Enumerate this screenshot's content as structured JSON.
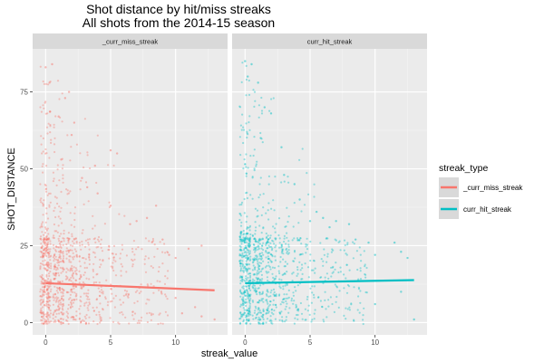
{
  "chart_data": {
    "type": "scatter",
    "title": "Shot distance by hit/miss streaks",
    "subtitle": "All shots from the 2014-15 season",
    "xlabel": "streak_value",
    "ylabel": "SHOT_DISTANCE",
    "xlim": [
      -1,
      14
    ],
    "ylim": [
      -4,
      89
    ],
    "x_ticks": [
      0,
      5,
      10
    ],
    "y_ticks": [
      0,
      25,
      50,
      75
    ],
    "grid": true,
    "legend_title": "streak_type",
    "legend_placement": "right",
    "panels": [
      {
        "strip": "_curr_miss_streak",
        "color": "#F8766D",
        "trend": {
          "x": [
            0,
            13
          ],
          "y": [
            12.8,
            10.5
          ]
        },
        "sparse_points": [
          {
            "x": 11,
            "y": 24
          },
          {
            "x": 11.5,
            "y": 5
          },
          {
            "x": 12,
            "y": 25
          },
          {
            "x": 12,
            "y": 2
          },
          {
            "x": 13,
            "y": 1
          },
          {
            "x": 10,
            "y": 21
          },
          {
            "x": 10.5,
            "y": 3
          },
          {
            "x": 9,
            "y": 27
          },
          {
            "x": 9.5,
            "y": 22
          },
          {
            "x": 10,
            "y": 8
          },
          {
            "x": 8.5,
            "y": 38
          },
          {
            "x": 7.8,
            "y": 34
          },
          {
            "x": 7,
            "y": 33
          },
          {
            "x": 6.5,
            "y": 32
          },
          {
            "x": 5.5,
            "y": 55
          },
          {
            "x": 5,
            "y": 56
          },
          {
            "x": 5,
            "y": 38
          },
          {
            "x": 3.8,
            "y": 51
          },
          {
            "x": 2.2,
            "y": 65
          },
          {
            "x": 1.8,
            "y": 75
          },
          {
            "x": 1.5,
            "y": 73
          },
          {
            "x": 1,
            "y": 67
          },
          {
            "x": 0.5,
            "y": 84
          },
          {
            "x": 0,
            "y": 83
          },
          {
            "x": 2,
            "y": 61
          },
          {
            "x": 0.3,
            "y": 78
          },
          {
            "x": 1.2,
            "y": 53
          },
          {
            "x": 2.8,
            "y": 47
          },
          {
            "x": 3.2,
            "y": 44
          },
          {
            "x": 4,
            "y": 42
          }
        ]
      },
      {
        "strip": "curr_hit_streak",
        "color": "#00BFC4",
        "trend": {
          "x": [
            0,
            13
          ],
          "y": [
            12.8,
            13.8
          ]
        },
        "sparse_points": [
          {
            "x": 11.5,
            "y": 26
          },
          {
            "x": 12,
            "y": 23
          },
          {
            "x": 12.5,
            "y": 21
          },
          {
            "x": 13,
            "y": 1
          },
          {
            "x": 12,
            "y": 10
          },
          {
            "x": 10,
            "y": 22
          },
          {
            "x": 9.5,
            "y": 26
          },
          {
            "x": 10,
            "y": 6
          },
          {
            "x": 8.5,
            "y": 27
          },
          {
            "x": 8,
            "y": 32
          },
          {
            "x": 7,
            "y": 33
          },
          {
            "x": 6.5,
            "y": 31
          },
          {
            "x": 6,
            "y": 34
          },
          {
            "x": 5.5,
            "y": 36
          },
          {
            "x": 5,
            "y": 33
          },
          {
            "x": 3.8,
            "y": 45
          },
          {
            "x": 2.8,
            "y": 57
          },
          {
            "x": 2,
            "y": 68
          },
          {
            "x": 1.5,
            "y": 70
          },
          {
            "x": 1,
            "y": 78
          },
          {
            "x": 0.5,
            "y": 84
          },
          {
            "x": 0,
            "y": 85
          },
          {
            "x": 0.2,
            "y": 80
          },
          {
            "x": 1.2,
            "y": 60
          },
          {
            "x": 3,
            "y": 48
          },
          {
            "x": 4.2,
            "y": 40
          }
        ]
      }
    ],
    "legend": [
      {
        "label": "_curr_miss_streak",
        "color": "#F8766D"
      },
      {
        "label": "curr_hit_streak",
        "color": "#00BFC4"
      }
    ]
  }
}
